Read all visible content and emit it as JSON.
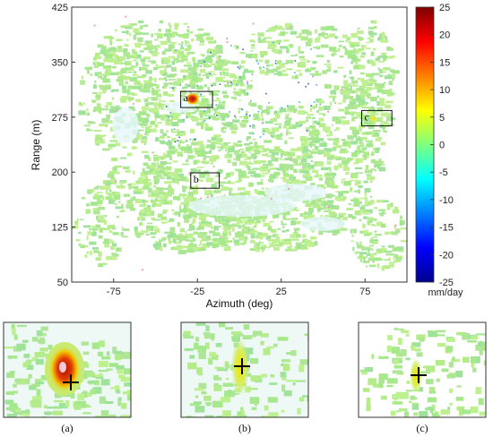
{
  "chart_data": [
    {
      "type": "heatmap",
      "title": "",
      "xlabel": "Azimuth (deg)",
      "ylabel": "Range (m)",
      "xlim": [
        -100,
        100
      ],
      "ylim": [
        50,
        425
      ],
      "xticks": [
        -75,
        -25,
        25,
        75
      ],
      "yticks": [
        50,
        125,
        200,
        275,
        350,
        425
      ],
      "grid": false,
      "colorbar": {
        "label": "mm/day",
        "range": [
          -25,
          25
        ],
        "ticks": [
          25,
          20,
          15,
          10,
          5,
          0,
          -5,
          -10,
          -15,
          -20,
          -25
        ],
        "colormap": "jet"
      },
      "regions": [
        {
          "label": "a",
          "x_range": [
            -35,
            -16
          ],
          "y_range": [
            288,
            310
          ]
        },
        {
          "label": "b",
          "x_range": [
            -29,
            -12
          ],
          "y_range": [
            178,
            199
          ]
        },
        {
          "label": "c",
          "x_range": [
            73,
            91
          ],
          "y_range": [
            263,
            284
          ]
        }
      ]
    },
    {
      "type": "heatmap",
      "caption": "(a)",
      "marker": "plus"
    },
    {
      "type": "heatmap",
      "caption": "(b)",
      "marker": "plus"
    },
    {
      "type": "heatmap",
      "caption": "(c)",
      "marker": "plus"
    }
  ]
}
